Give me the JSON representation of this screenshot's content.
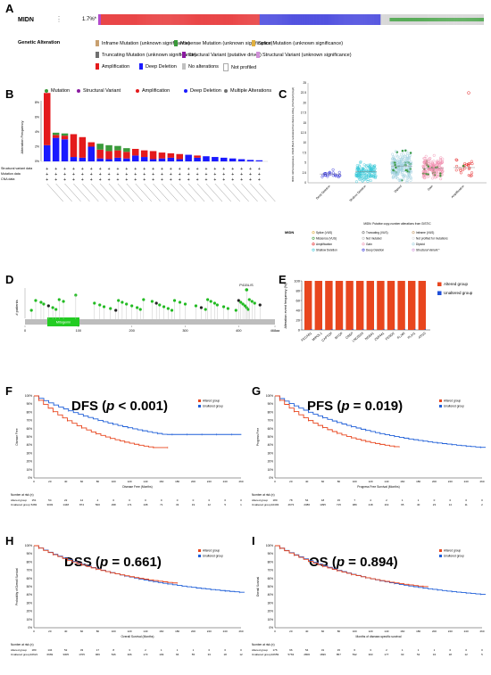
{
  "panelA": {
    "letter": "A",
    "gene": "MIDN",
    "percent": "1.7%*",
    "section_label": "Genetic Alteration",
    "legend": [
      {
        "label": "Inframe Mutation (unknown significance)",
        "color": "#c8a070"
      },
      {
        "label": "Missense Mutation (unknown significance)",
        "color": "#3a9a3a"
      },
      {
        "label": "Splice Mutation (unknown significance)",
        "color": "#e0b040"
      },
      {
        "label": "Truncating Mutation (unknown significance)",
        "color": "#707070"
      },
      {
        "label": "Structural Variant (putative driver)",
        "color": "#8a1aa0"
      },
      {
        "label": "Structural Variant (unknown significance)",
        "color": "#d090d8"
      },
      {
        "label": "Amplification",
        "color": "#e41a1c"
      },
      {
        "label": "Deep Deletion",
        "color": "#1a1aff"
      },
      {
        "label": "No alterations",
        "color": "#c0c0c0"
      },
      {
        "label": "Not profiled",
        "color": "#ffffff"
      }
    ],
    "colors": {
      "amp": "#e41a1c",
      "del": "#2a2ad8",
      "mis": "#3aa13a",
      "sv": "#a020c0",
      "none": "#cfcfcf"
    }
  },
  "panelB": {
    "letter": "B",
    "legend": [
      {
        "label": "Mutation",
        "color": "#3a9a3a"
      },
      {
        "label": "Structural Variant",
        "color": "#8a1aa0"
      },
      {
        "label": "Amplification",
        "color": "#e41a1c"
      },
      {
        "label": "Deep Deletion",
        "color": "#1a1aff"
      },
      {
        "label": "Multiple Alterations",
        "color": "#707070"
      }
    ],
    "ylabel": "Alteration Frequency",
    "row_labels": [
      "Structural variant data",
      "Mutation data",
      "CNA data"
    ]
  },
  "panelC": {
    "letter": "C",
    "ylabel": "MIDN: mRNA Expression, RSEM (Batch normalized from Illumina HiSeq_RNASeqV2) (log2)",
    "xlabel": "MIDN: Putative copy-number alterations from GISTIC",
    "categories": [
      "Deep Deletion",
      "Shallow Deletion",
      "Diploid",
      "Gain",
      "Amplification"
    ],
    "legend_title": "MIDN",
    "legend": [
      "Splice (VUS)",
      "Truncating (VUS)",
      "Inframe (VUS)",
      "Missense (VUS)",
      "Not mutated",
      "Not profiled for mutations",
      "Amplification",
      "Gain",
      "Diploid",
      "Shallow Deletion",
      "Deep Deletion",
      "Structural Variant *"
    ]
  },
  "panelD": {
    "letter": "D",
    "ylabel": "# patients",
    "domain": "Mitogenin",
    "hotspot": "P415L/S",
    "ticks": [
      "0",
      "100",
      "200",
      "300",
      "400",
      "468aa"
    ]
  },
  "panelE": {
    "letter": "E",
    "ylabel": "Alteration event frequency (%)",
    "yticks": [
      "0",
      "20",
      "40",
      "60",
      "80",
      "100"
    ],
    "legend": [
      {
        "label": "Altered group",
        "color": "#e8461e"
      },
      {
        "label": "Unaltered group",
        "color": "#1f4fd8"
      }
    ],
    "chart_data": {
      "type": "bar",
      "categories": [
        "FECAB1",
        "MIPOL1",
        "CAPTOF",
        "MYOF",
        "CBSP",
        "LNC0025",
        "NGS41",
        "ZNF441",
        "FENO2",
        "FLJ40",
        "PLAI1",
        "ATI10"
      ],
      "series": [
        {
          "name": "Altered group",
          "values": [
            100,
            100,
            100,
            100,
            100,
            100,
            100,
            100,
            100,
            100,
            100,
            100
          ]
        },
        {
          "name": "Unaltered group",
          "values": [
            1,
            1,
            1,
            1,
            1,
            1,
            1,
            1,
            1,
            1,
            1,
            1
          ]
        }
      ],
      "ylim": [
        0,
        100
      ]
    }
  },
  "survival": [
    {
      "letter": "F",
      "title_prefix": "DFS (",
      "title_p": "p",
      "title_suffix": " < 0.001)",
      "xlabel": "Disease Free (Months)",
      "ylabel": "Disease Free",
      "risk_header": "Number at risk (n)",
      "risk_rows": [
        {
          "label": "Altered group",
          "values": [
            "151",
            "54",
            "22",
            "12",
            "4",
            "0",
            "0",
            "0",
            "0",
            "0",
            "0",
            "0",
            "0",
            "0"
          ]
        },
        {
          "label": "Unaltered group",
          "values": [
            "5282",
            "3003",
            "1448",
            "874",
            "500",
            "298",
            "171",
            "108",
            "71",
            "33",
            "19",
            "12",
            "5",
            "1"
          ]
        }
      ]
    },
    {
      "letter": "G",
      "title_prefix": "PFS (",
      "title_p": "p",
      "title_suffix": " = 0.019)",
      "xlabel": "Progress Free Survival (Months)",
      "ylabel": "Progress Free",
      "risk_header": "Number at risk (n)",
      "risk_rows": [
        {
          "label": "Altered group",
          "values": [
            "180",
            "78",
            "54",
            "18",
            "15",
            "7",
            "4",
            "2",
            "1",
            "1",
            "0",
            "0",
            "0",
            "0"
          ]
        },
        {
          "label": "Unaltered group",
          "values": [
            "10493",
            "4673",
            "2386",
            "1395",
            "715",
            "389",
            "218",
            "119",
            "65",
            "40",
            "23",
            "14",
            "11",
            "2"
          ]
        }
      ]
    },
    {
      "letter": "H",
      "title_prefix": "DSS (",
      "title_p": "p",
      "title_suffix": " = 0.661)",
      "xlabel": "Overall Survival (Months)",
      "ylabel": "Probability of Overall Survival",
      "risk_header": "Number at risk (n)",
      "risk_rows": [
        {
          "label": "Altered group",
          "values": [
            "180",
            "134",
            "52",
            "33",
            "17",
            "8",
            "3",
            "2",
            "1",
            "1",
            "1",
            "0",
            "0",
            "0"
          ]
        },
        {
          "label": "Unaltered group",
          "values": [
            "10621",
            "6969",
            "3305",
            "1705",
            "966",
            "546",
            "306",
            "173",
            "109",
            "66",
            "55",
            "33",
            "18",
            "12"
          ]
        }
      ]
    },
    {
      "letter": "I",
      "title_prefix": "OS (",
      "title_p": "p",
      "title_suffix": " = 0.894)",
      "xlabel": "Months of disease-specific survival",
      "ylabel": "Overall Survival",
      "risk_header": "Number at risk (n)",
      "risk_rows": [
        {
          "label": "Altered group",
          "values": [
            "176",
            "96",
            "54",
            "31",
            "15",
            "6",
            "3",
            "2",
            "1",
            "1",
            "1",
            "0",
            "0",
            "0"
          ]
        },
        {
          "label": "Unaltered group",
          "values": [
            "10659",
            "5763",
            "2806",
            "1696",
            "857",
            "532",
            "303",
            "177",
            "93",
            "52",
            "34",
            "18",
            "12",
            "5"
          ]
        }
      ]
    }
  ],
  "survival_legend": [
    "Altered group",
    "Unaltered group"
  ],
  "survival_xticks": [
    "0",
    "20",
    "40",
    "60",
    "80",
    "100",
    "120",
    "140",
    "160",
    "180",
    "200",
    "220",
    "240",
    "260"
  ],
  "survival_yticks": [
    "0%",
    "10%",
    "20%",
    "30%",
    "40%",
    "50%",
    "60%",
    "70%",
    "80%",
    "90%",
    "100%"
  ]
}
